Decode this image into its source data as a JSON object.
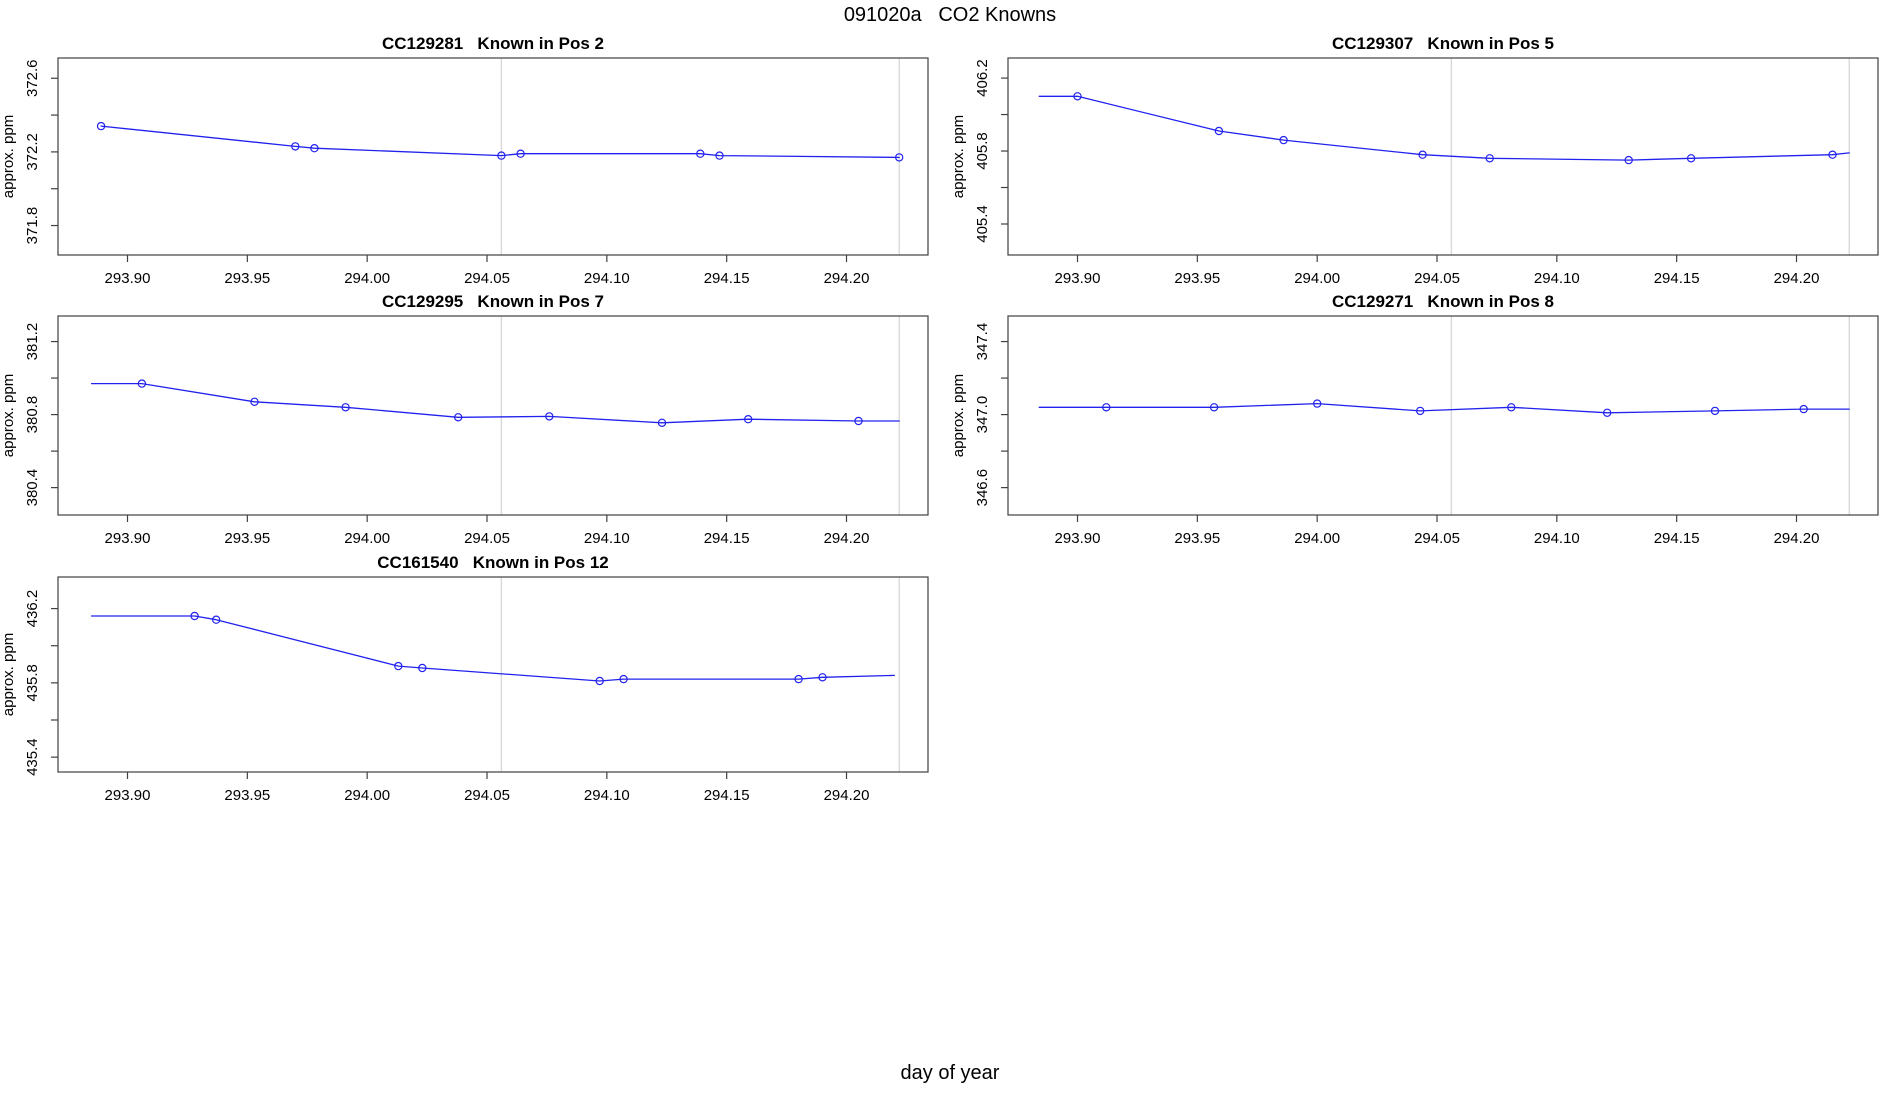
{
  "page": {
    "title": "091020a   CO2 Knowns",
    "x_axis_label": "day of year"
  },
  "colors": {
    "line": "#2222ee",
    "marker": "#2222ee",
    "grid_line": "#d9d9d9",
    "box_border": "#404040",
    "text": "#000000",
    "background": "#ffffff"
  },
  "chart_data": [
    {
      "id": "pos2",
      "type": "line",
      "title": "CC129281   Known in Pos 2",
      "ylabel": "approx. ppm",
      "grid": {
        "row": 0,
        "col": 0
      },
      "xlim": [
        293.871,
        294.234
      ],
      "ylim": [
        371.64,
        372.71
      ],
      "xticks": [
        {
          "v": 293.9,
          "label": "293.90"
        },
        {
          "v": 293.95,
          "label": "293.95"
        },
        {
          "v": 294.0,
          "label": "294.00"
        },
        {
          "v": 294.05,
          "label": "294.05"
        },
        {
          "v": 294.1,
          "label": "294.10"
        },
        {
          "v": 294.15,
          "label": "294.15"
        },
        {
          "v": 294.2,
          "label": "294.20"
        }
      ],
      "yticks": [
        {
          "v": 371.8,
          "label": "371.8"
        },
        {
          "v": 372.0,
          "label": null
        },
        {
          "v": 372.2,
          "label": "372.2"
        },
        {
          "v": 372.4,
          "label": null
        },
        {
          "v": 372.6,
          "label": "372.6"
        }
      ],
      "vlines": [
        294.056,
        294.222
      ],
      "line": [
        [
          293.889,
          372.34
        ],
        [
          293.97,
          372.23
        ],
        [
          293.978,
          372.22
        ],
        [
          294.056,
          372.18
        ],
        [
          294.064,
          372.19
        ],
        [
          294.139,
          372.19
        ],
        [
          294.147,
          372.18
        ],
        [
          294.222,
          372.17
        ]
      ],
      "points": [
        [
          293.889,
          372.34
        ],
        [
          293.97,
          372.23
        ],
        [
          293.978,
          372.22
        ],
        [
          294.056,
          372.18
        ],
        [
          294.064,
          372.19
        ],
        [
          294.139,
          372.19
        ],
        [
          294.147,
          372.18
        ],
        [
          294.222,
          372.17
        ]
      ]
    },
    {
      "id": "pos5",
      "type": "line",
      "title": "CC129307   Known in Pos 5",
      "ylabel": "approx. ppm",
      "grid": {
        "row": 0,
        "col": 1
      },
      "xlim": [
        293.871,
        294.234
      ],
      "ylim": [
        405.23,
        406.31
      ],
      "xticks": [
        {
          "v": 293.9,
          "label": "293.90"
        },
        {
          "v": 293.95,
          "label": "293.95"
        },
        {
          "v": 294.0,
          "label": "294.00"
        },
        {
          "v": 294.05,
          "label": "294.05"
        },
        {
          "v": 294.1,
          "label": "294.10"
        },
        {
          "v": 294.15,
          "label": "294.15"
        },
        {
          "v": 294.2,
          "label": "294.20"
        }
      ],
      "yticks": [
        {
          "v": 405.4,
          "label": "405.4"
        },
        {
          "v": 405.6,
          "label": null
        },
        {
          "v": 405.8,
          "label": "405.8"
        },
        {
          "v": 406.0,
          "label": null
        },
        {
          "v": 406.2,
          "label": "406.2"
        }
      ],
      "vlines": [
        294.056,
        294.222
      ],
      "line": [
        [
          293.884,
          406.1
        ],
        [
          293.9,
          406.1
        ],
        [
          293.959,
          405.91
        ],
        [
          293.986,
          405.86
        ],
        [
          294.044,
          405.78
        ],
        [
          294.072,
          405.76
        ],
        [
          294.13,
          405.75
        ],
        [
          294.156,
          405.76
        ],
        [
          294.215,
          405.78
        ],
        [
          294.222,
          405.79
        ]
      ],
      "points": [
        [
          293.9,
          406.1
        ],
        [
          293.959,
          405.91
        ],
        [
          293.986,
          405.86
        ],
        [
          294.044,
          405.78
        ],
        [
          294.072,
          405.76
        ],
        [
          294.13,
          405.75
        ],
        [
          294.156,
          405.76
        ],
        [
          294.215,
          405.78
        ]
      ]
    },
    {
      "id": "pos7",
      "type": "line",
      "title": "CC129295   Known in Pos 7",
      "ylabel": "approx. ppm",
      "grid": {
        "row": 1,
        "col": 0
      },
      "xlim": [
        293.871,
        294.234
      ],
      "ylim": [
        380.25,
        381.34
      ],
      "xticks": [
        {
          "v": 293.9,
          "label": "293.90"
        },
        {
          "v": 293.95,
          "label": "293.95"
        },
        {
          "v": 294.0,
          "label": "294.00"
        },
        {
          "v": 294.05,
          "label": "294.05"
        },
        {
          "v": 294.1,
          "label": "294.10"
        },
        {
          "v": 294.15,
          "label": "294.15"
        },
        {
          "v": 294.2,
          "label": "294.20"
        }
      ],
      "yticks": [
        {
          "v": 380.4,
          "label": "380.4"
        },
        {
          "v": 380.6,
          "label": null
        },
        {
          "v": 380.8,
          "label": "380.8"
        },
        {
          "v": 381.0,
          "label": null
        },
        {
          "v": 381.2,
          "label": "381.2"
        }
      ],
      "vlines": [
        294.056,
        294.222
      ],
      "line": [
        [
          293.885,
          380.97
        ],
        [
          293.906,
          380.97
        ],
        [
          293.953,
          380.87
        ],
        [
          293.991,
          380.84
        ],
        [
          294.038,
          380.785
        ],
        [
          294.076,
          380.79
        ],
        [
          294.123,
          380.755
        ],
        [
          294.159,
          380.775
        ],
        [
          294.205,
          380.765
        ],
        [
          294.222,
          380.765
        ]
      ],
      "points": [
        [
          293.906,
          380.97
        ],
        [
          293.953,
          380.87
        ],
        [
          293.991,
          380.84
        ],
        [
          294.038,
          380.785
        ],
        [
          294.076,
          380.79
        ],
        [
          294.123,
          380.755
        ],
        [
          294.159,
          380.775
        ],
        [
          294.205,
          380.765
        ]
      ]
    },
    {
      "id": "pos8",
      "type": "line",
      "title": "CC129271   Known in Pos 8",
      "ylabel": "approx. ppm",
      "grid": {
        "row": 1,
        "col": 1
      },
      "xlim": [
        293.871,
        294.234
      ],
      "ylim": [
        346.45,
        347.54
      ],
      "xticks": [
        {
          "v": 293.9,
          "label": "293.90"
        },
        {
          "v": 293.95,
          "label": "293.95"
        },
        {
          "v": 294.0,
          "label": "294.00"
        },
        {
          "v": 294.05,
          "label": "294.05"
        },
        {
          "v": 294.1,
          "label": "294.10"
        },
        {
          "v": 294.15,
          "label": "294.15"
        },
        {
          "v": 294.2,
          "label": "294.20"
        }
      ],
      "yticks": [
        {
          "v": 346.6,
          "label": "346.6"
        },
        {
          "v": 346.8,
          "label": null
        },
        {
          "v": 347.0,
          "label": "347.0"
        },
        {
          "v": 347.2,
          "label": null
        },
        {
          "v": 347.4,
          "label": "347.4"
        }
      ],
      "vlines": [
        294.056,
        294.222
      ],
      "line": [
        [
          293.884,
          347.04
        ],
        [
          293.912,
          347.04
        ],
        [
          293.957,
          347.04
        ],
        [
          294.0,
          347.06
        ],
        [
          294.043,
          347.02
        ],
        [
          294.081,
          347.04
        ],
        [
          294.121,
          347.01
        ],
        [
          294.166,
          347.02
        ],
        [
          294.203,
          347.03
        ],
        [
          294.222,
          347.03
        ]
      ],
      "points": [
        [
          293.912,
          347.04
        ],
        [
          293.957,
          347.04
        ],
        [
          294.0,
          347.06
        ],
        [
          294.043,
          347.02
        ],
        [
          294.081,
          347.04
        ],
        [
          294.121,
          347.01
        ],
        [
          294.166,
          347.02
        ],
        [
          294.203,
          347.03
        ]
      ]
    },
    {
      "id": "pos12",
      "type": "line",
      "title": "CC161540   Known in Pos 12",
      "ylabel": "approx. ppm",
      "grid": {
        "row": 2,
        "col": 0
      },
      "xlim": [
        293.871,
        294.234
      ],
      "ylim": [
        435.32,
        436.37
      ],
      "xticks": [
        {
          "v": 293.9,
          "label": "293.90"
        },
        {
          "v": 293.95,
          "label": "293.95"
        },
        {
          "v": 294.0,
          "label": "294.00"
        },
        {
          "v": 294.05,
          "label": "294.05"
        },
        {
          "v": 294.1,
          "label": "294.10"
        },
        {
          "v": 294.15,
          "label": "294.15"
        },
        {
          "v": 294.2,
          "label": "294.20"
        }
      ],
      "yticks": [
        {
          "v": 435.4,
          "label": "435.4"
        },
        {
          "v": 435.6,
          "label": null
        },
        {
          "v": 435.8,
          "label": "435.8"
        },
        {
          "v": 436.0,
          "label": null
        },
        {
          "v": 436.2,
          "label": "436.2"
        }
      ],
      "vlines": [
        294.056,
        294.222
      ],
      "line": [
        [
          293.885,
          436.16
        ],
        [
          293.928,
          436.16
        ],
        [
          293.937,
          436.14
        ],
        [
          294.013,
          435.89
        ],
        [
          294.023,
          435.88
        ],
        [
          294.097,
          435.81
        ],
        [
          294.107,
          435.82
        ],
        [
          294.18,
          435.82
        ],
        [
          294.19,
          435.83
        ],
        [
          294.22,
          435.84
        ]
      ],
      "points": [
        [
          293.928,
          436.16
        ],
        [
          293.937,
          436.14
        ],
        [
          294.013,
          435.89
        ],
        [
          294.023,
          435.88
        ],
        [
          294.097,
          435.81
        ],
        [
          294.107,
          435.82
        ],
        [
          294.18,
          435.82
        ],
        [
          294.19,
          435.83
        ]
      ]
    }
  ]
}
